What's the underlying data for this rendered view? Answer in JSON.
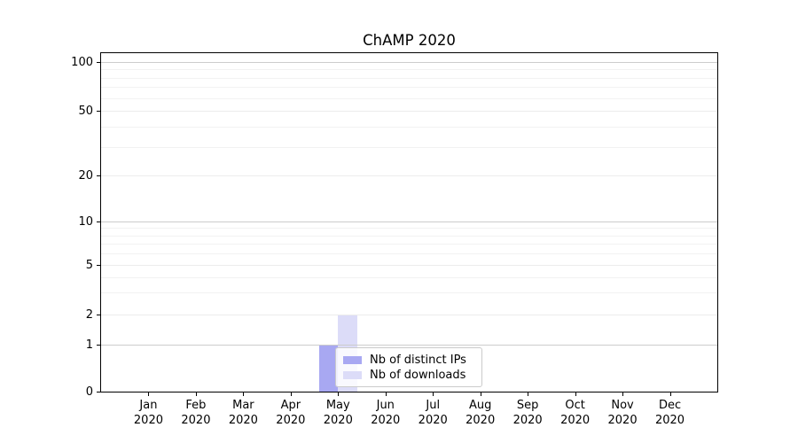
{
  "chart_data": {
    "type": "bar",
    "title": "ChAMP 2020",
    "categories": [
      "Jan 2020",
      "Feb 2020",
      "Mar 2020",
      "Apr 2020",
      "May 2020",
      "Jun 2020",
      "Jul 2020",
      "Aug 2020",
      "Sep 2020",
      "Oct 2020",
      "Nov 2020",
      "Dec 2020"
    ],
    "months": [
      "Jan",
      "Feb",
      "Mar",
      "Apr",
      "May",
      "Jun",
      "Jul",
      "Aug",
      "Sep",
      "Oct",
      "Nov",
      "Dec"
    ],
    "year_label": "2020",
    "series": [
      {
        "name": "Nb of distinct IPs",
        "color": "#a8a8f2",
        "values": [
          0,
          0,
          0,
          0,
          1,
          0,
          0,
          0,
          0,
          0,
          0,
          0
        ]
      },
      {
        "name": "Nb of downloads",
        "color": "#dcdcf8",
        "values": [
          0,
          0,
          0,
          0,
          2,
          0,
          0,
          0,
          0,
          0,
          0,
          0
        ]
      }
    ],
    "yaxis": {
      "scale": "symlog",
      "range": [
        0,
        100
      ],
      "major_ticks": [
        0,
        1,
        2,
        5,
        10,
        20,
        50,
        100
      ],
      "decade_ticks": [
        1,
        10,
        100
      ],
      "minor_ticks": [
        3,
        4,
        6,
        7,
        8,
        9,
        30,
        40,
        60,
        70,
        80,
        90
      ]
    },
    "xaxis": {
      "tick_count": 12
    },
    "grid": "horizontal",
    "legend": {
      "position": "lower-center-inside",
      "entries": [
        "Nb of distinct IPs",
        "Nb of downloads"
      ]
    },
    "colors": {
      "spine": "#000000",
      "grid_decade": "#cccccc",
      "grid_major": "#ececec",
      "grid_minor": "#f2f2f2",
      "background": "#ffffff"
    }
  }
}
